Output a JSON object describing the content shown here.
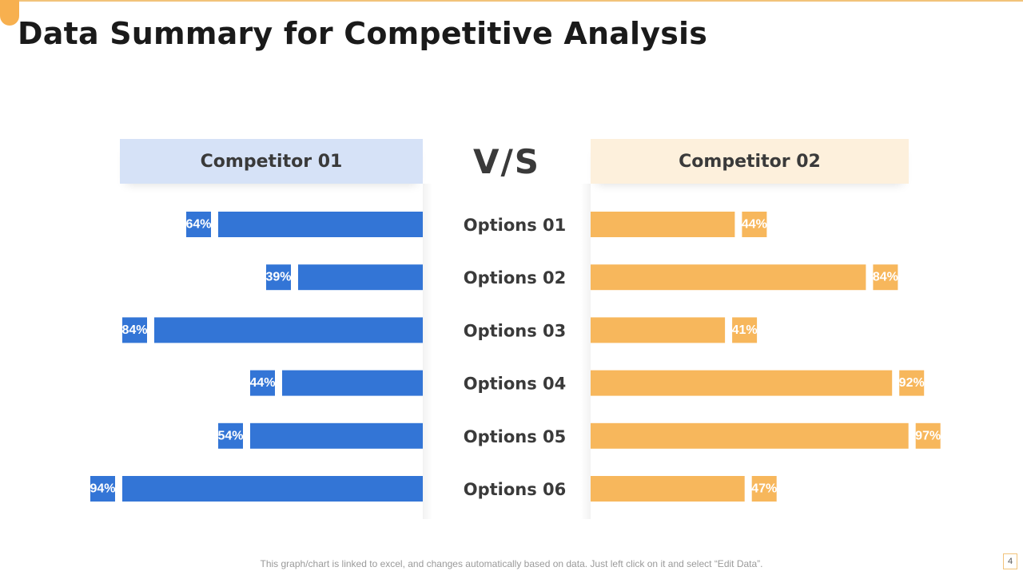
{
  "title": "Data Summary for Competitive Analysis",
  "footnote": "This graph/chart is linked to excel, and changes automatically based on data. Just left click on it and select “Edit Data”.",
  "page_number": "4",
  "colors": {
    "competitor_01": "#3375d6",
    "competitor_02": "#f7b75c",
    "accent": "#f7b04f"
  },
  "chart_data": {
    "type": "bar",
    "layout": "butterfly",
    "vs_label": "V/S",
    "categories": [
      "Options 01",
      "Options 02",
      "Options 03",
      "Options 04",
      "Options 05",
      "Options 06"
    ],
    "series": [
      {
        "name": "Competitor 01",
        "values": [
          64,
          39,
          84,
          44,
          54,
          94
        ],
        "labels": [
          "64%",
          "39%",
          "84%",
          "44%",
          "54%",
          "94%"
        ]
      },
      {
        "name": "Competitor 02",
        "values": [
          44,
          84,
          41,
          92,
          97,
          47
        ],
        "labels": [
          "44%",
          "84%",
          "41%",
          "92%",
          "97%",
          "47%"
        ]
      }
    ],
    "xlim": [
      0,
      100
    ],
    "grid": false
  }
}
